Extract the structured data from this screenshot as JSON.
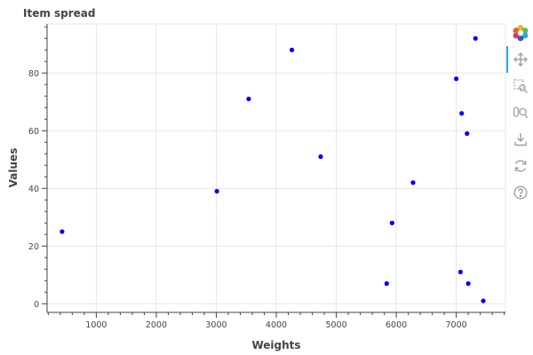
{
  "chart_data": {
    "type": "scatter",
    "title": "Item spread",
    "xlabel": "Weights",
    "ylabel": "Values",
    "xlim": [
      180,
      7820
    ],
    "ylim": [
      -3,
      97
    ],
    "x_ticks": [
      1000,
      2000,
      3000,
      4000,
      5000,
      6000,
      7000
    ],
    "y_ticks": [
      0,
      20,
      40,
      60,
      80
    ],
    "grid": true,
    "marker_color": "#0000ff",
    "points": [
      {
        "x": 430,
        "y": 25
      },
      {
        "x": 3010,
        "y": 39
      },
      {
        "x": 3540,
        "y": 71
      },
      {
        "x": 4260,
        "y": 88
      },
      {
        "x": 4740,
        "y": 51
      },
      {
        "x": 5840,
        "y": 7
      },
      {
        "x": 5930,
        "y": 28
      },
      {
        "x": 6280,
        "y": 42
      },
      {
        "x": 7000,
        "y": 78
      },
      {
        "x": 7070,
        "y": 11
      },
      {
        "x": 7090,
        "y": 66
      },
      {
        "x": 7180,
        "y": 59
      },
      {
        "x": 7200,
        "y": 7
      },
      {
        "x": 7320,
        "y": 92
      },
      {
        "x": 7450,
        "y": 1
      }
    ]
  },
  "toolbar": {
    "tools": [
      {
        "name": "bokeh-logo-icon",
        "interactable": true
      },
      {
        "name": "pan-tool-icon",
        "interactable": true
      },
      {
        "name": "box-zoom-tool-icon",
        "interactable": true
      },
      {
        "name": "wheel-zoom-tool-icon",
        "interactable": true
      },
      {
        "name": "save-tool-icon",
        "interactable": true
      },
      {
        "name": "reset-tool-icon",
        "interactable": true
      },
      {
        "name": "help-tool-icon",
        "interactable": true
      }
    ],
    "icon_color": "#a0a0a0",
    "active_color": "#26aae1"
  }
}
